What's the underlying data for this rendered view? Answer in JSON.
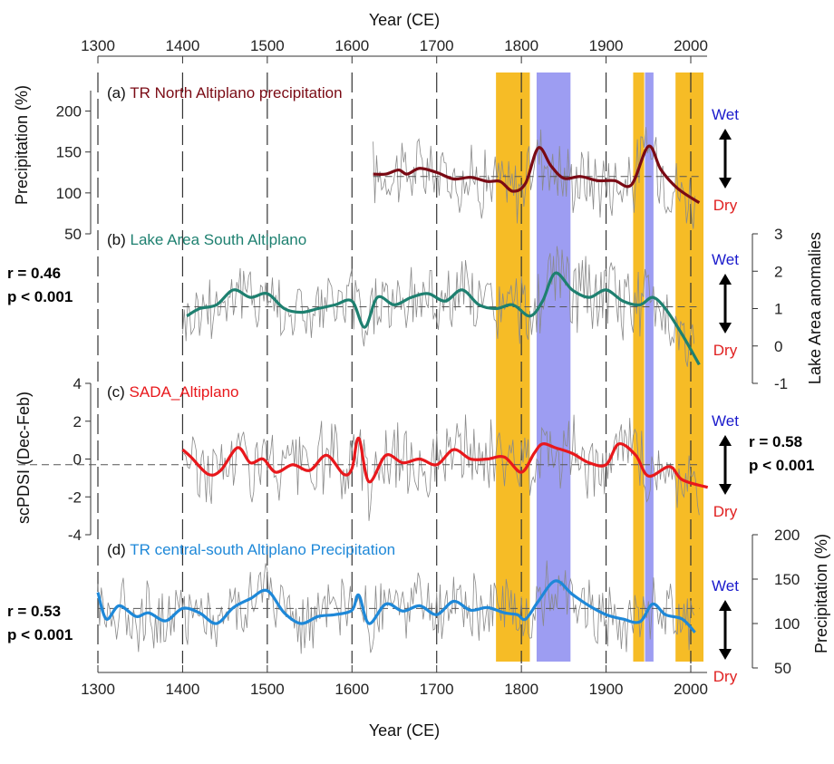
{
  "figure": {
    "x_axis_title": "Year (CE)",
    "x_ticks": [
      1300,
      1400,
      1500,
      1600,
      1700,
      1800,
      1900,
      2000
    ]
  },
  "shading": {
    "dry_color": "#F5B000",
    "wet_color": "#8C8CF0",
    "dry_periods": [
      [
        1770,
        1810
      ],
      [
        1932,
        1945
      ],
      [
        1982,
        2015
      ]
    ],
    "wet_periods": [
      [
        1818,
        1858
      ],
      [
        1946,
        1956
      ]
    ]
  },
  "indicator": {
    "wet_label": "Wet",
    "dry_label": "Dry",
    "wet_color": "#1a1acc",
    "dry_color": "#e02020"
  },
  "colors": {
    "raw": "#8a8a8a",
    "a": "#7a0a14",
    "b": "#1e8070",
    "c": "#e8181c",
    "d": "#1e88d8"
  },
  "chart_data": [
    {
      "type": "line",
      "panel": "a",
      "title": "(a) TR North Altiplano precipitation",
      "ylabel": "Precipitation (%)",
      "ylim": [
        50,
        225
      ],
      "yticks": [
        50,
        100,
        150,
        200
      ],
      "mean_line": 120,
      "raw_range": [
        1625,
        2005
      ],
      "x": [
        1625,
        1640,
        1655,
        1665,
        1680,
        1700,
        1720,
        1740,
        1760,
        1775,
        1790,
        1805,
        1820,
        1835,
        1850,
        1870,
        1890,
        1910,
        1930,
        1950,
        1965,
        1985,
        2010
      ],
      "y": [
        123,
        123,
        128,
        123,
        130,
        125,
        117,
        119,
        114,
        114,
        102,
        112,
        155,
        133,
        118,
        120,
        115,
        115,
        110,
        157,
        128,
        105,
        88
      ]
    },
    {
      "type": "line",
      "panel": "b",
      "title": "(b) Lake Area South Altiplano",
      "ylabel": "Lake Area anomalies",
      "ylim": [
        -1,
        3
      ],
      "yticks": [
        -1,
        0,
        1,
        2,
        3
      ],
      "mean_line": 1.05,
      "raw_range": [
        1400,
        2005
      ],
      "stat_r": "r = 0.46",
      "stat_p": "p < 0.001",
      "x": [
        1405,
        1420,
        1440,
        1460,
        1480,
        1500,
        1520,
        1540,
        1560,
        1580,
        1600,
        1615,
        1630,
        1650,
        1670,
        1690,
        1710,
        1730,
        1750,
        1770,
        1790,
        1810,
        1825,
        1840,
        1860,
        1880,
        1900,
        1920,
        1940,
        1955,
        1970,
        1990,
        2010
      ],
      "y": [
        0.8,
        1.0,
        1.1,
        1.5,
        1.3,
        1.4,
        1.0,
        0.9,
        1.0,
        1.1,
        1.2,
        0.5,
        1.3,
        1.1,
        1.3,
        1.4,
        1.2,
        1.5,
        1.1,
        1.0,
        1.1,
        0.8,
        1.2,
        1.95,
        1.5,
        1.3,
        1.5,
        1.2,
        1.1,
        1.3,
        1.0,
        0.3,
        -0.5
      ]
    },
    {
      "type": "line",
      "panel": "c",
      "title": "(c) SADA_Altiplano",
      "ylabel": "scPDSI (Dec-Feb)",
      "ylim": [
        -4,
        4
      ],
      "yticks": [
        -4,
        -2,
        0,
        2,
        4
      ],
      "mean_line": -0.3,
      "raw_range": [
        1400,
        2010
      ],
      "stat_r": "r = 0.58",
      "stat_p": "p < 0.001",
      "x": [
        1400,
        1410,
        1430,
        1445,
        1465,
        1480,
        1495,
        1510,
        1530,
        1550,
        1570,
        1590,
        1600,
        1608,
        1620,
        1640,
        1660,
        1680,
        1700,
        1720,
        1740,
        1760,
        1780,
        1800,
        1815,
        1825,
        1840,
        1860,
        1880,
        1900,
        1915,
        1935,
        1950,
        1975,
        1990,
        2020
      ],
      "y": [
        0.5,
        0.1,
        -0.8,
        -0.6,
        0.6,
        -0.2,
        0.0,
        -0.7,
        -0.3,
        -0.6,
        0.2,
        -0.8,
        -0.5,
        1.1,
        -1.2,
        0.2,
        -0.2,
        0.0,
        -0.3,
        0.5,
        0.0,
        0.0,
        0.1,
        -0.7,
        0.3,
        0.8,
        0.6,
        0.3,
        -0.2,
        -0.3,
        0.8,
        0.2,
        -0.9,
        -0.4,
        -1.1,
        -1.5
      ]
    },
    {
      "type": "line",
      "panel": "d",
      "title": "(d) TR central-south Altiplano Precipitation",
      "ylabel": "Precipitation (%)",
      "ylim": [
        50,
        200
      ],
      "yticks": [
        50,
        100,
        150,
        200
      ],
      "mean_line": 117,
      "raw_range": [
        1300,
        2005
      ],
      "stat_r": "r = 0.53",
      "stat_p": "p < 0.001",
      "x": [
        1300,
        1310,
        1325,
        1345,
        1360,
        1380,
        1400,
        1420,
        1440,
        1460,
        1480,
        1500,
        1520,
        1540,
        1560,
        1580,
        1600,
        1608,
        1620,
        1640,
        1660,
        1680,
        1700,
        1720,
        1740,
        1760,
        1780,
        1795,
        1805,
        1820,
        1840,
        1860,
        1880,
        1900,
        1920,
        1940,
        1955,
        1970,
        1990,
        2005
      ],
      "y": [
        135,
        105,
        120,
        108,
        112,
        103,
        117,
        112,
        100,
        118,
        128,
        137,
        112,
        100,
        108,
        110,
        115,
        132,
        100,
        122,
        114,
        120,
        110,
        125,
        115,
        118,
        112,
        110,
        105,
        125,
        148,
        133,
        120,
        110,
        105,
        102,
        122,
        110,
        105,
        90
      ]
    }
  ]
}
